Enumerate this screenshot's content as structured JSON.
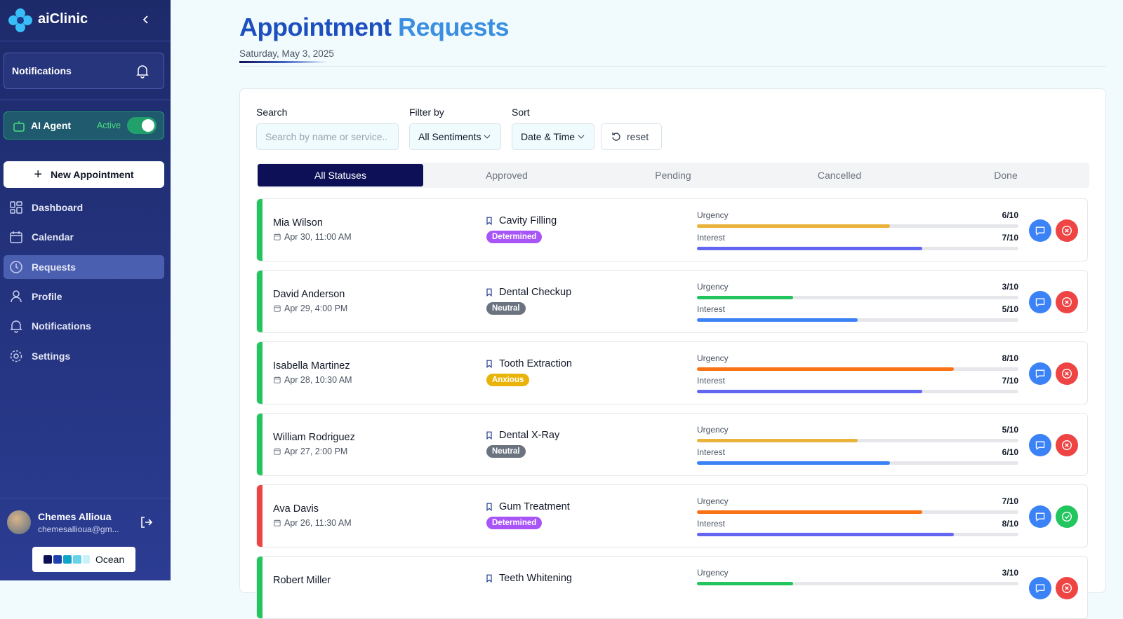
{
  "sidebar": {
    "brand": "aiClinic",
    "notifications": "Notifications",
    "ai_agent": "AI Agent",
    "agent_status": "Active",
    "new_appointment": "New Appointment",
    "nav": [
      "Dashboard",
      "Calendar",
      "Requests",
      "Profile",
      "Notifications",
      "Settings"
    ],
    "user": {
      "name": "Chemes Allioua",
      "email": "chemesallioua@gm..."
    },
    "theme": "Ocean"
  },
  "header": {
    "title_main": "Appointment",
    "title_accent": "Requests",
    "date": "Saturday, May 3, 2025"
  },
  "filters": {
    "search_label": "Search",
    "search_placeholder": "Search by name or service..",
    "filter_label": "Filter by",
    "filter_value": "All Sentiments",
    "sort_label": "Sort",
    "sort_value": "Date & Time",
    "reset": "reset"
  },
  "tabs": [
    "All Statuses",
    "Approved",
    "Pending",
    "Cancelled",
    "Done"
  ],
  "metric_labels": {
    "urgency": "Urgency",
    "interest": "Interest"
  },
  "score_scale": [
    0,
    10
  ],
  "requests": [
    {
      "name": "Mia Wilson",
      "date": "Apr 30, 11:00 AM",
      "service": "Cavity Filling",
      "sentiment": "Determined",
      "sentiment_color": "#a855f7",
      "accent": "#22c55e",
      "urgency": {
        "value": 6,
        "label": "6/10"
      },
      "urgency_color": "#eab33b",
      "interest": {
        "value": 7,
        "label": "7/10"
      },
      "interest_color": "#6366f1",
      "action": {
        "color": "#ef4444",
        "icon": "cancel"
      }
    },
    {
      "name": "David Anderson",
      "date": "Apr 29, 4:00 PM",
      "service": "Dental Checkup",
      "sentiment": "Neutral",
      "sentiment_color": "#6b7280",
      "accent": "#22c55e",
      "urgency": {
        "value": 3,
        "label": "3/10"
      },
      "urgency_color": "#22c55e",
      "interest": {
        "value": 5,
        "label": "5/10"
      },
      "interest_color": "#3b82f6",
      "action": {
        "color": "#ef4444",
        "icon": "cancel"
      }
    },
    {
      "name": "Isabella Martinez",
      "date": "Apr 28, 10:30 AM",
      "service": "Tooth Extraction",
      "sentiment": "Anxious",
      "sentiment_color": "#eab308",
      "accent": "#22c55e",
      "urgency": {
        "value": 8,
        "label": "8/10"
      },
      "urgency_color": "#f97316",
      "interest": {
        "value": 7,
        "label": "7/10"
      },
      "interest_color": "#6366f1",
      "action": {
        "color": "#ef4444",
        "icon": "cancel"
      }
    },
    {
      "name": "William Rodriguez",
      "date": "Apr 27, 2:00 PM",
      "service": "Dental X-Ray",
      "sentiment": "Neutral",
      "sentiment_color": "#6b7280",
      "accent": "#22c55e",
      "urgency": {
        "value": 5,
        "label": "5/10"
      },
      "urgency_color": "#eab33b",
      "interest": {
        "value": 6,
        "label": "6/10"
      },
      "interest_color": "#3b82f6",
      "action": {
        "color": "#ef4444",
        "icon": "cancel"
      }
    },
    {
      "name": "Ava Davis",
      "date": "Apr 26, 11:30 AM",
      "service": "Gum Treatment",
      "sentiment": "Determined",
      "sentiment_color": "#a855f7",
      "accent": "#ef4444",
      "urgency": {
        "value": 7,
        "label": "7/10"
      },
      "urgency_color": "#f97316",
      "interest": {
        "value": 8,
        "label": "8/10"
      },
      "interest_color": "#6366f1",
      "action": {
        "color": "#22c55e",
        "icon": "approve"
      }
    },
    {
      "name": "Robert Miller",
      "service": "Teeth Whitening",
      "accent": "#22c55e",
      "urgency": {
        "value": 3,
        "label": "3/10"
      },
      "urgency_color": "#22c55e",
      "action": {
        "color": "#ef4444",
        "icon": "cancel"
      }
    }
  ]
}
